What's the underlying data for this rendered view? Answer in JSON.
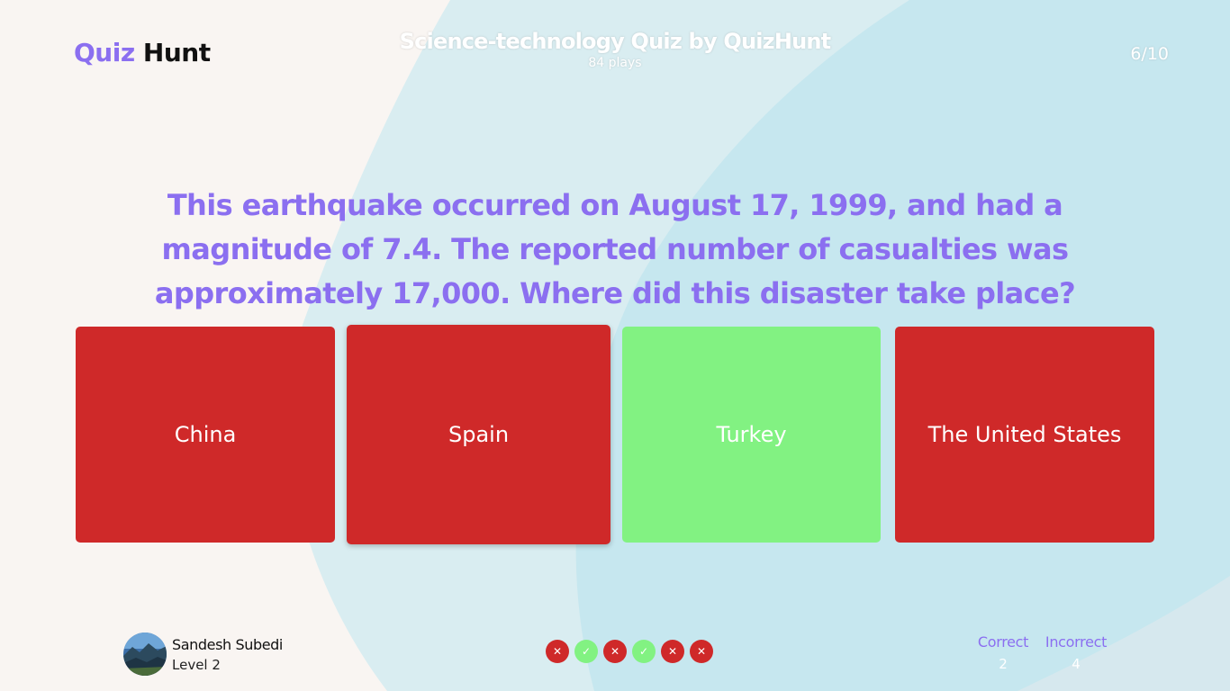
{
  "header": {
    "logo_part1": "Quiz",
    "logo_part2": "Hunt",
    "quiz_title": "Science-technology Quiz by QuizHunt",
    "plays": "84 plays",
    "progress": "6/10"
  },
  "question": {
    "text": "This earthquake occurred on August 17, 1999, and had a magnitude of 7.4. The reported number of casualties was approximately 17,000. Where did this disaster take place?"
  },
  "answers": [
    {
      "label": "China",
      "state": "wrong"
    },
    {
      "label": "Spain",
      "state": "wrong",
      "selected": true
    },
    {
      "label": "Turkey",
      "state": "correct"
    },
    {
      "label": "The United States",
      "state": "wrong"
    }
  ],
  "user": {
    "name": "Sandesh Subedi",
    "level": "Level 2"
  },
  "history": [
    {
      "result": "wrong",
      "icon": "x-icon"
    },
    {
      "result": "correct",
      "icon": "check-icon"
    },
    {
      "result": "wrong",
      "icon": "x-icon"
    },
    {
      "result": "correct",
      "icon": "check-icon"
    },
    {
      "result": "wrong",
      "icon": "x-icon"
    },
    {
      "result": "wrong",
      "icon": "x-icon"
    }
  ],
  "score": {
    "correct_label": "Correct",
    "correct_value": "2",
    "incorrect_label": "Incorrect",
    "incorrect_value": "4"
  },
  "colors": {
    "accent": "#8b6ff0",
    "wrong": "#cf2929",
    "correct": "#82f282",
    "background": "#f9f5f2",
    "blob": "#c8e8ef"
  }
}
